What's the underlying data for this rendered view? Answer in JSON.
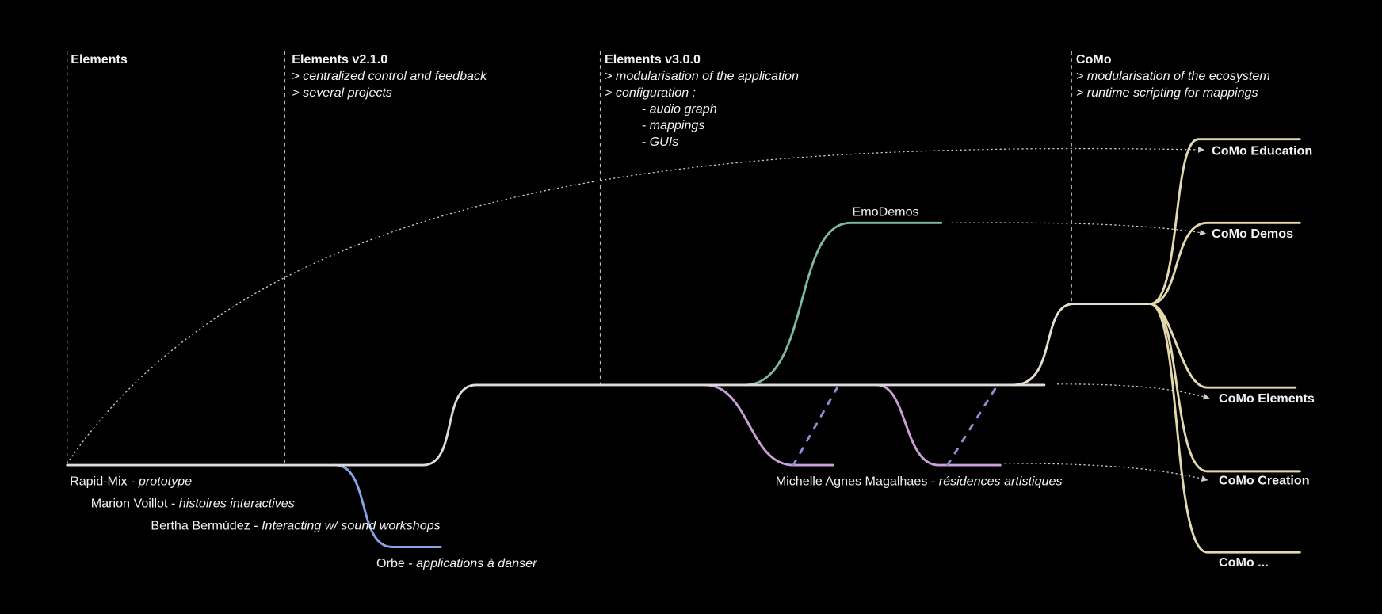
{
  "milestones": [
    {
      "title": "Elements",
      "lines": [],
      "sublines": []
    },
    {
      "title": "Elements v2.1.0",
      "lines": [
        "> centralized control and feedback",
        "> several projects"
      ],
      "sublines": []
    },
    {
      "title": "Elements v3.0.0",
      "lines": [
        "> modularisation of the application",
        "> configuration :"
      ],
      "sublines": [
        "-  audio graph",
        "-  mappings",
        "-  GUIs"
      ]
    },
    {
      "title": "CoMo",
      "lines": [
        "> modularisation of the ecosystem",
        "> runtime scripting for mappings"
      ],
      "sublines": []
    }
  ],
  "branches": [
    {
      "name": "Rapid-Mix -",
      "detail": "prototype"
    },
    {
      "name": "Marion Voillot -",
      "detail": "histoires interactives"
    },
    {
      "name": "Bertha Bermúdez -",
      "detail": "Interacting w/ sound workshops"
    },
    {
      "name": "Orbe -",
      "detail": "applications à danser"
    },
    {
      "name": "Michelle Agnes Magalhaes -",
      "detail": "résidences artistiques"
    },
    {
      "name": "EmoDemos",
      "detail": null
    }
  ],
  "products": [
    "CoMo Education",
    "CoMo Demos",
    "CoMo Elements",
    "CoMo Creation",
    "CoMo ..."
  ]
}
